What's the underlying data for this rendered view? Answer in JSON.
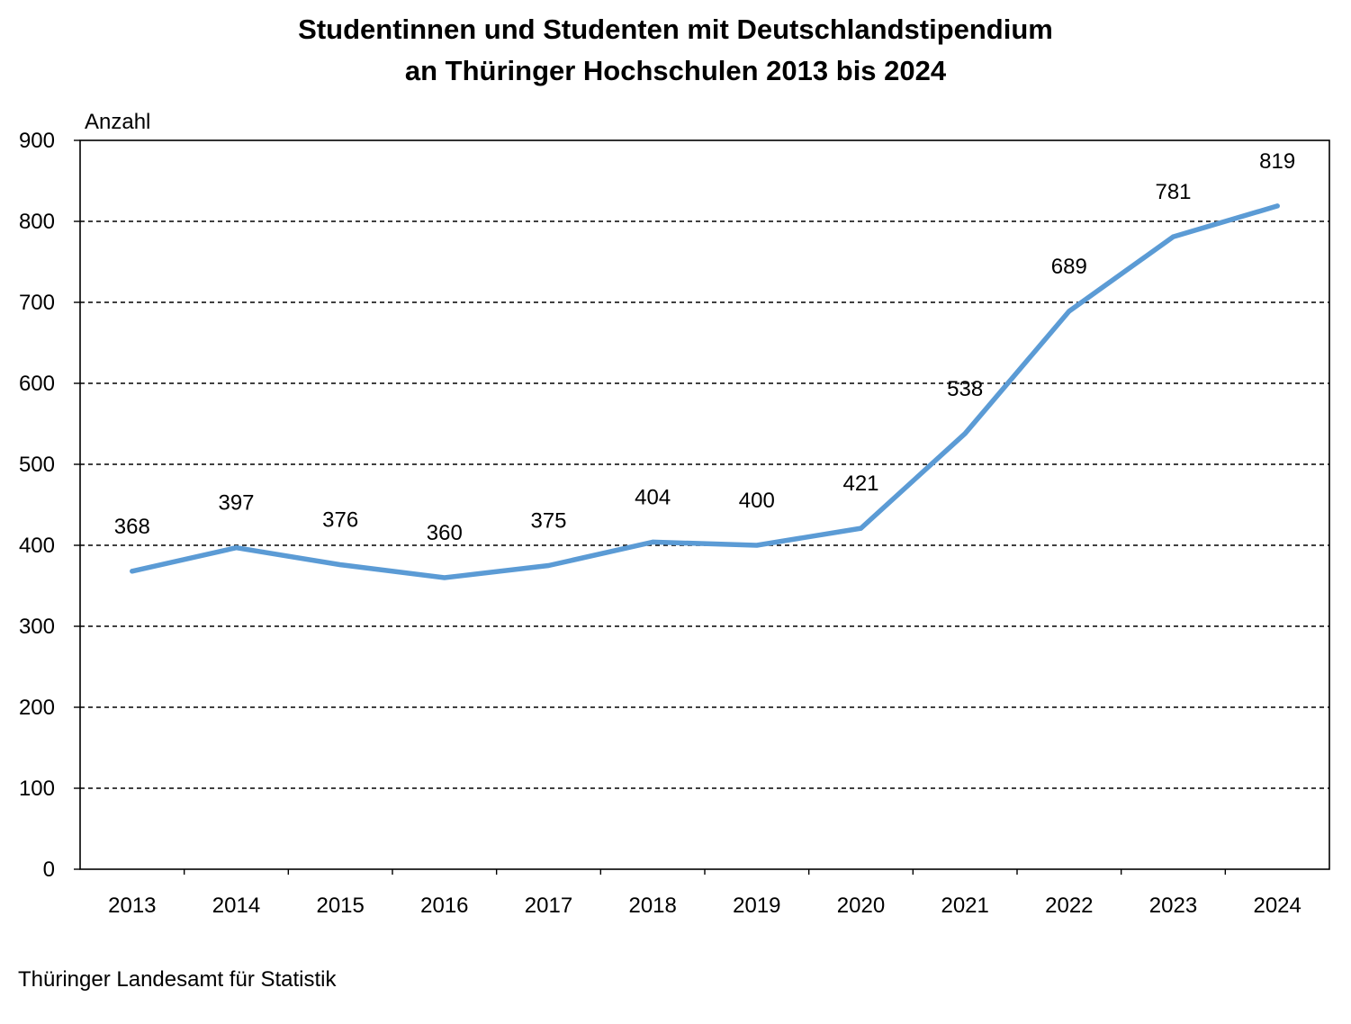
{
  "chart_data": {
    "type": "line",
    "title": "Studentinnen und Studenten mit Deutschlandstipendium an Thüringer Hochschulen 2013 bis 2024",
    "title_lines": [
      "Studentinnen und Studenten mit Deutschlandstipendium",
      "an Thüringer Hochschulen 2013 bis 2024"
    ],
    "xlabel": "",
    "ylabel": "Anzahl",
    "categories": [
      "2013",
      "2014",
      "2015",
      "2016",
      "2017",
      "2018",
      "2019",
      "2020",
      "2021",
      "2022",
      "2023",
      "2024"
    ],
    "series": [
      {
        "values": [
          368,
          397,
          376,
          360,
          375,
          404,
          400,
          421,
          538,
          689,
          781,
          819
        ],
        "color": "#5b9bd5"
      }
    ],
    "data_labels": [
      "368",
      "397",
      "376",
      "360",
      "375",
      "404",
      "400",
      "421",
      "538",
      "689",
      "781",
      "819"
    ],
    "ylim": [
      0,
      900
    ],
    "yticks": [
      "0",
      "100",
      "200",
      "300",
      "400",
      "500",
      "600",
      "700",
      "800",
      "900"
    ],
    "grid": "horizontal dashed",
    "legend": "none"
  },
  "source": "Thüringer Landesamt für Statistik"
}
